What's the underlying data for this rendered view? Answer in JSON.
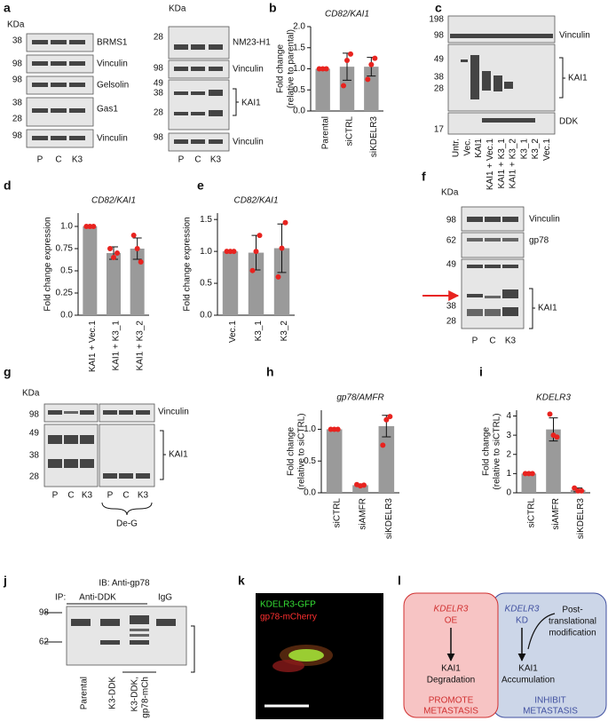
{
  "chart_data": [
    {
      "type": "bar",
      "panel": "b",
      "title": "CD82/KAI1",
      "ylabel": [
        "Fold change",
        "(relative to parental)"
      ],
      "categories": [
        "Parental",
        "siCTRL",
        "siKDELR3"
      ],
      "values": [
        1.0,
        1.05,
        1.05
      ],
      "errors": [
        0,
        0.32,
        0.22
      ],
      "points": [
        [
          1,
          1,
          1
        ],
        [
          0.6,
          1.2,
          1.35
        ],
        [
          0.75,
          1.1,
          1.25
        ]
      ],
      "color": "#9a9a9a",
      "point_color": "#e8231f",
      "ylim": [
        0,
        2
      ],
      "yticks": [
        {
          "value": 0,
          "label": "0.0"
        },
        {
          "value": 0.5,
          "label": "0.5"
        },
        {
          "value": 1,
          "label": "1.0"
        },
        {
          "value": 1.5,
          "label": "1.5"
        },
        {
          "value": 2,
          "label": "2.0"
        }
      ]
    },
    {
      "type": "bar",
      "panel": "d",
      "title": "CD82/KAI1",
      "ylabel": [
        "Fold change expression"
      ],
      "categories": [
        "KAI1 + Vec.1",
        "KAI1 + K3_1",
        "KAI1 + K3_2"
      ],
      "values": [
        1.0,
        0.7,
        0.75
      ],
      "errors": [
        0,
        0.07,
        0.12
      ],
      "points": [
        [
          1,
          1,
          1
        ],
        [
          0.75,
          0.65,
          0.7
        ],
        [
          0.9,
          0.75,
          0.6
        ]
      ],
      "color": "#9a9a9a",
      "point_color": "#e8231f",
      "ylim": [
        0,
        1.15
      ],
      "yticks": [
        {
          "value": 0,
          "label": "0.0"
        },
        {
          "value": 0.25,
          "label": "0.25"
        },
        {
          "value": 0.5,
          "label": "0.5"
        },
        {
          "value": 0.75,
          "label": "0.75"
        },
        {
          "value": 1,
          "label": "1.0"
        }
      ]
    },
    {
      "type": "bar",
      "panel": "e",
      "title": "CD82/KAI1",
      "ylabel": [
        "Fold change expression"
      ],
      "categories": [
        "Vec.1",
        "K3_1",
        "K3_2"
      ],
      "values": [
        1.0,
        0.98,
        1.05
      ],
      "errors": [
        0,
        0.27,
        0.38
      ],
      "points": [
        [
          1,
          1,
          1
        ],
        [
          0.7,
          1.0,
          1.25
        ],
        [
          0.6,
          1.05,
          1.45
        ]
      ],
      "color": "#9a9a9a",
      "point_color": "#e8231f",
      "ylim": [
        0,
        1.6
      ],
      "yticks": [
        {
          "value": 0,
          "label": "0.0"
        },
        {
          "value": 0.5,
          "label": "0.5"
        },
        {
          "value": 1,
          "label": "1.0"
        },
        {
          "value": 1.5,
          "label": "1.5"
        }
      ]
    },
    {
      "type": "bar",
      "panel": "h",
      "title": "gp78/AMFR",
      "ylabel": [
        "Fold change",
        "(relative to siCTRL)"
      ],
      "categories": [
        "siCTRL",
        "siAMFR",
        "siKDELR3"
      ],
      "values": [
        1.0,
        0.12,
        1.05
      ],
      "errors": [
        0,
        0.02,
        0.17
      ],
      "points": [
        [
          1,
          1,
          1
        ],
        [
          0.13,
          0.11,
          0.12
        ],
        [
          0.75,
          1.15,
          1.2
        ]
      ],
      "color": "#9a9a9a",
      "point_color": "#e8231f",
      "ylim": [
        0,
        1.3
      ],
      "yticks": [
        {
          "value": 0,
          "label": "0.0"
        },
        {
          "value": 0.5,
          "label": "0.5"
        },
        {
          "value": 1,
          "label": "1.0"
        }
      ]
    },
    {
      "type": "bar",
      "panel": "i",
      "title": "KDELR3",
      "ylabel": [
        "Fold change",
        "(relative to siCTRL)"
      ],
      "categories": [
        "siCTRL",
        "siAMFR",
        "siKDELR3"
      ],
      "values": [
        1.0,
        3.3,
        0.15
      ],
      "errors": [
        0,
        0.6,
        0.1
      ],
      "points": [
        [
          1,
          1,
          1
        ],
        [
          4.1,
          3.0,
          2.9
        ],
        [
          0.25,
          0.1,
          0.1
        ]
      ],
      "color": "#9a9a9a",
      "point_color": "#e8231f",
      "ylim": [
        0,
        4.3
      ],
      "yticks": [
        0,
        1,
        2,
        3,
        4
      ]
    }
  ],
  "blot_a": {
    "label": "a",
    "left": {
      "kda": "KDa",
      "markers": [
        "38",
        "98",
        "98",
        "38",
        "28",
        "98"
      ],
      "proteins": [
        "BRMS1",
        "Vinculin",
        "Gelsolin",
        "Gas1",
        "Vinculin"
      ],
      "lanes": [
        "P",
        "C",
        "K3"
      ]
    },
    "right": {
      "kda": "KDa",
      "markers": [
        "28",
        "98",
        "49",
        "38",
        "28",
        "98"
      ],
      "proteins": [
        "NM23-H1",
        "Vinculin",
        "KAI1",
        "Vinculin"
      ],
      "lanes": [
        "P",
        "C",
        "K3"
      ]
    }
  },
  "blot_c": {
    "label": "c",
    "markers": [
      "198",
      "98",
      "49",
      "38",
      "28",
      "17"
    ],
    "proteins": [
      "Vinculin",
      "KAI1",
      "DDK"
    ],
    "lanes": [
      "Untr.",
      "Vec.",
      "KAI1",
      "KAI1 + Vec.1",
      "KAI1 + K3_1",
      "KAI1 + K3_2",
      "K3_1",
      "K3_2",
      "Vec.1"
    ]
  },
  "blot_f": {
    "label": "f",
    "kda": "KDa",
    "markers": [
      "98",
      "62",
      "49",
      "38",
      "28"
    ],
    "proteins": [
      "Vinculin",
      "gp78",
      "KAI1"
    ],
    "lanes": [
      "P",
      "C",
      "K3"
    ]
  },
  "blot_g": {
    "label": "g",
    "kda": "KDa",
    "markers": [
      "98",
      "49",
      "38",
      "28"
    ],
    "proteins": [
      "Vinculin",
      "KAI1"
    ],
    "lanes": [
      "P",
      "C",
      "K3",
      "P",
      "C",
      "K3"
    ],
    "group": "De-G"
  },
  "blot_j": {
    "label": "j",
    "ib": "IB: Anti-gp78",
    "ip": "IP:",
    "groups": [
      "Anti-DDK",
      "IgG"
    ],
    "markers": [
      "98",
      "62"
    ],
    "lanes": [
      "Parental",
      "K3-DDK",
      [
        "K3-DDK,",
        "gp78-mCh"
      ]
    ]
  },
  "image_k": {
    "label": "k",
    "channels": [
      "KDELR3-GFP",
      "gp78-mCherry"
    ]
  },
  "diagram_l": {
    "label": "l",
    "left": {
      "gene": "KDELR3",
      "action": "OE",
      "node": [
        "KAI1",
        "Degradation"
      ],
      "outcome": [
        "PROMOTE",
        "METASTASIS"
      ]
    },
    "right": {
      "gene": "KDELR3",
      "action": "KD",
      "modifier": [
        "Post-",
        "translational",
        "modification"
      ],
      "node": [
        "KAI1",
        "Accumulation"
      ],
      "outcome": [
        "INHIBIT",
        "METASTASIS"
      ]
    }
  }
}
